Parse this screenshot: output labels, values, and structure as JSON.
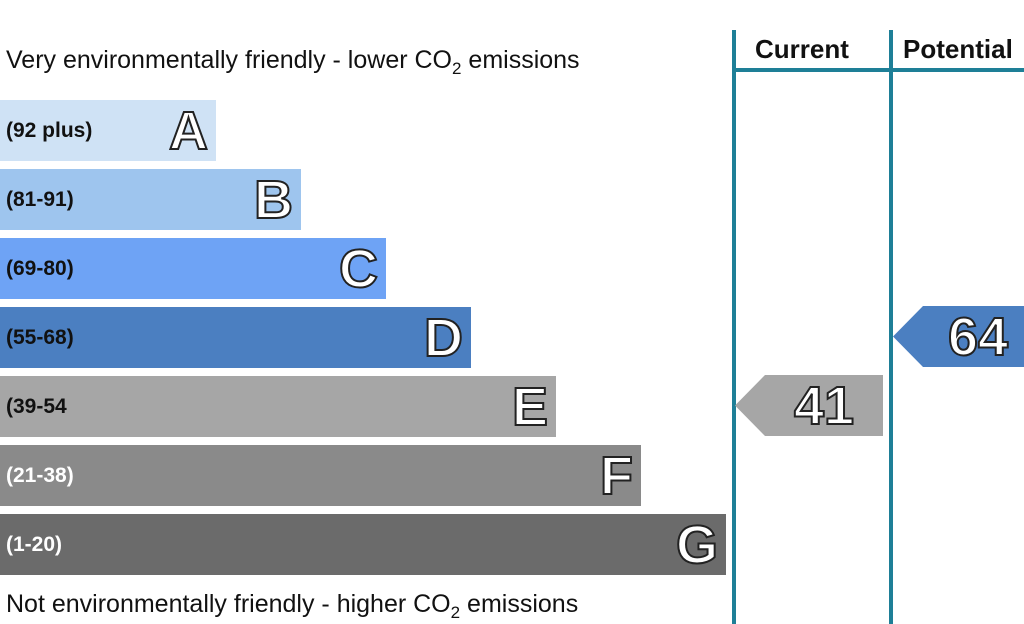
{
  "captions": {
    "top_main": "Very environmentally friendly - lower CO",
    "top_sub": "2",
    "top_tail": " emissions",
    "bottom_main": "Not environmentally friendly - higher CO",
    "bottom_sub": "2",
    "bottom_tail": " emissions"
  },
  "columns": {
    "current": "Current",
    "potential": "Potential"
  },
  "chart_data": {
    "type": "bar",
    "bands": [
      {
        "letter": "A",
        "range": "(92 plus)",
        "color": "#cfe2f5",
        "text_color": "#111111"
      },
      {
        "letter": "B",
        "range": "(81-91)",
        "color": "#9ec5ee",
        "text_color": "#111111"
      },
      {
        "letter": "C",
        "range": "(69-80)",
        "color": "#6ea3f5",
        "text_color": "#111111"
      },
      {
        "letter": "D",
        "range": "(55-68)",
        "color": "#4b7fc1",
        "text_color": "#111111"
      },
      {
        "letter": "E",
        "range": "(39-54",
        "color": "#a6a6a6",
        "text_color": "#111111"
      },
      {
        "letter": "F",
        "range": "(21-38)",
        "color": "#8a8a8a",
        "text_color": "#ffffff"
      },
      {
        "letter": "G",
        "range": "(1-20)",
        "color": "#6b6b6b",
        "text_color": "#ffffff"
      }
    ],
    "current": {
      "value": 41,
      "band": "E",
      "color": "#a6a6a6"
    },
    "potential": {
      "value": 64,
      "band": "D",
      "color": "#4b7fc1"
    }
  }
}
